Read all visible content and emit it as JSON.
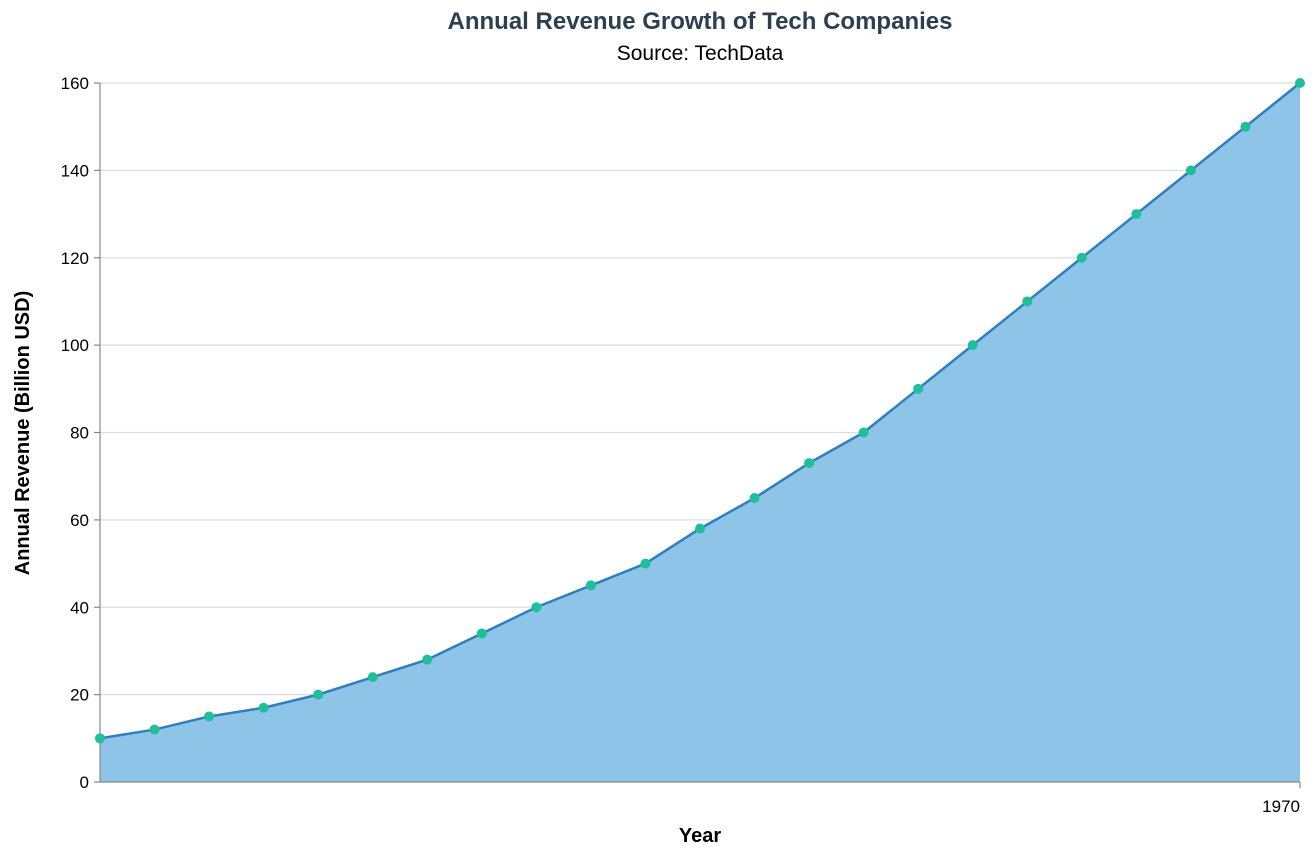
{
  "chart_data": {
    "type": "area",
    "title": "Annual Revenue Growth of Tech Companies",
    "subtitle": "Source: TechData",
    "xlabel": "Year",
    "ylabel": "Annual Revenue (Billion USD)",
    "x_tick_labels": [
      "1970"
    ],
    "ylim": [
      0,
      160
    ],
    "y_ticks": [
      0,
      20,
      40,
      60,
      80,
      100,
      120,
      140,
      160
    ],
    "grid": true,
    "series": [
      {
        "values": [
          10,
          12,
          15,
          17,
          20,
          24,
          28,
          34,
          40,
          45,
          50,
          58,
          65,
          73,
          80,
          90,
          100,
          110,
          120,
          130,
          140,
          150,
          160
        ]
      }
    ],
    "colors": {
      "area_fill": "#8fc4e9",
      "line": "#2f7fbf",
      "points": "#1fbf9a",
      "title": "#2d3e50",
      "grid": "#dddddd",
      "axis": "#888888"
    }
  }
}
